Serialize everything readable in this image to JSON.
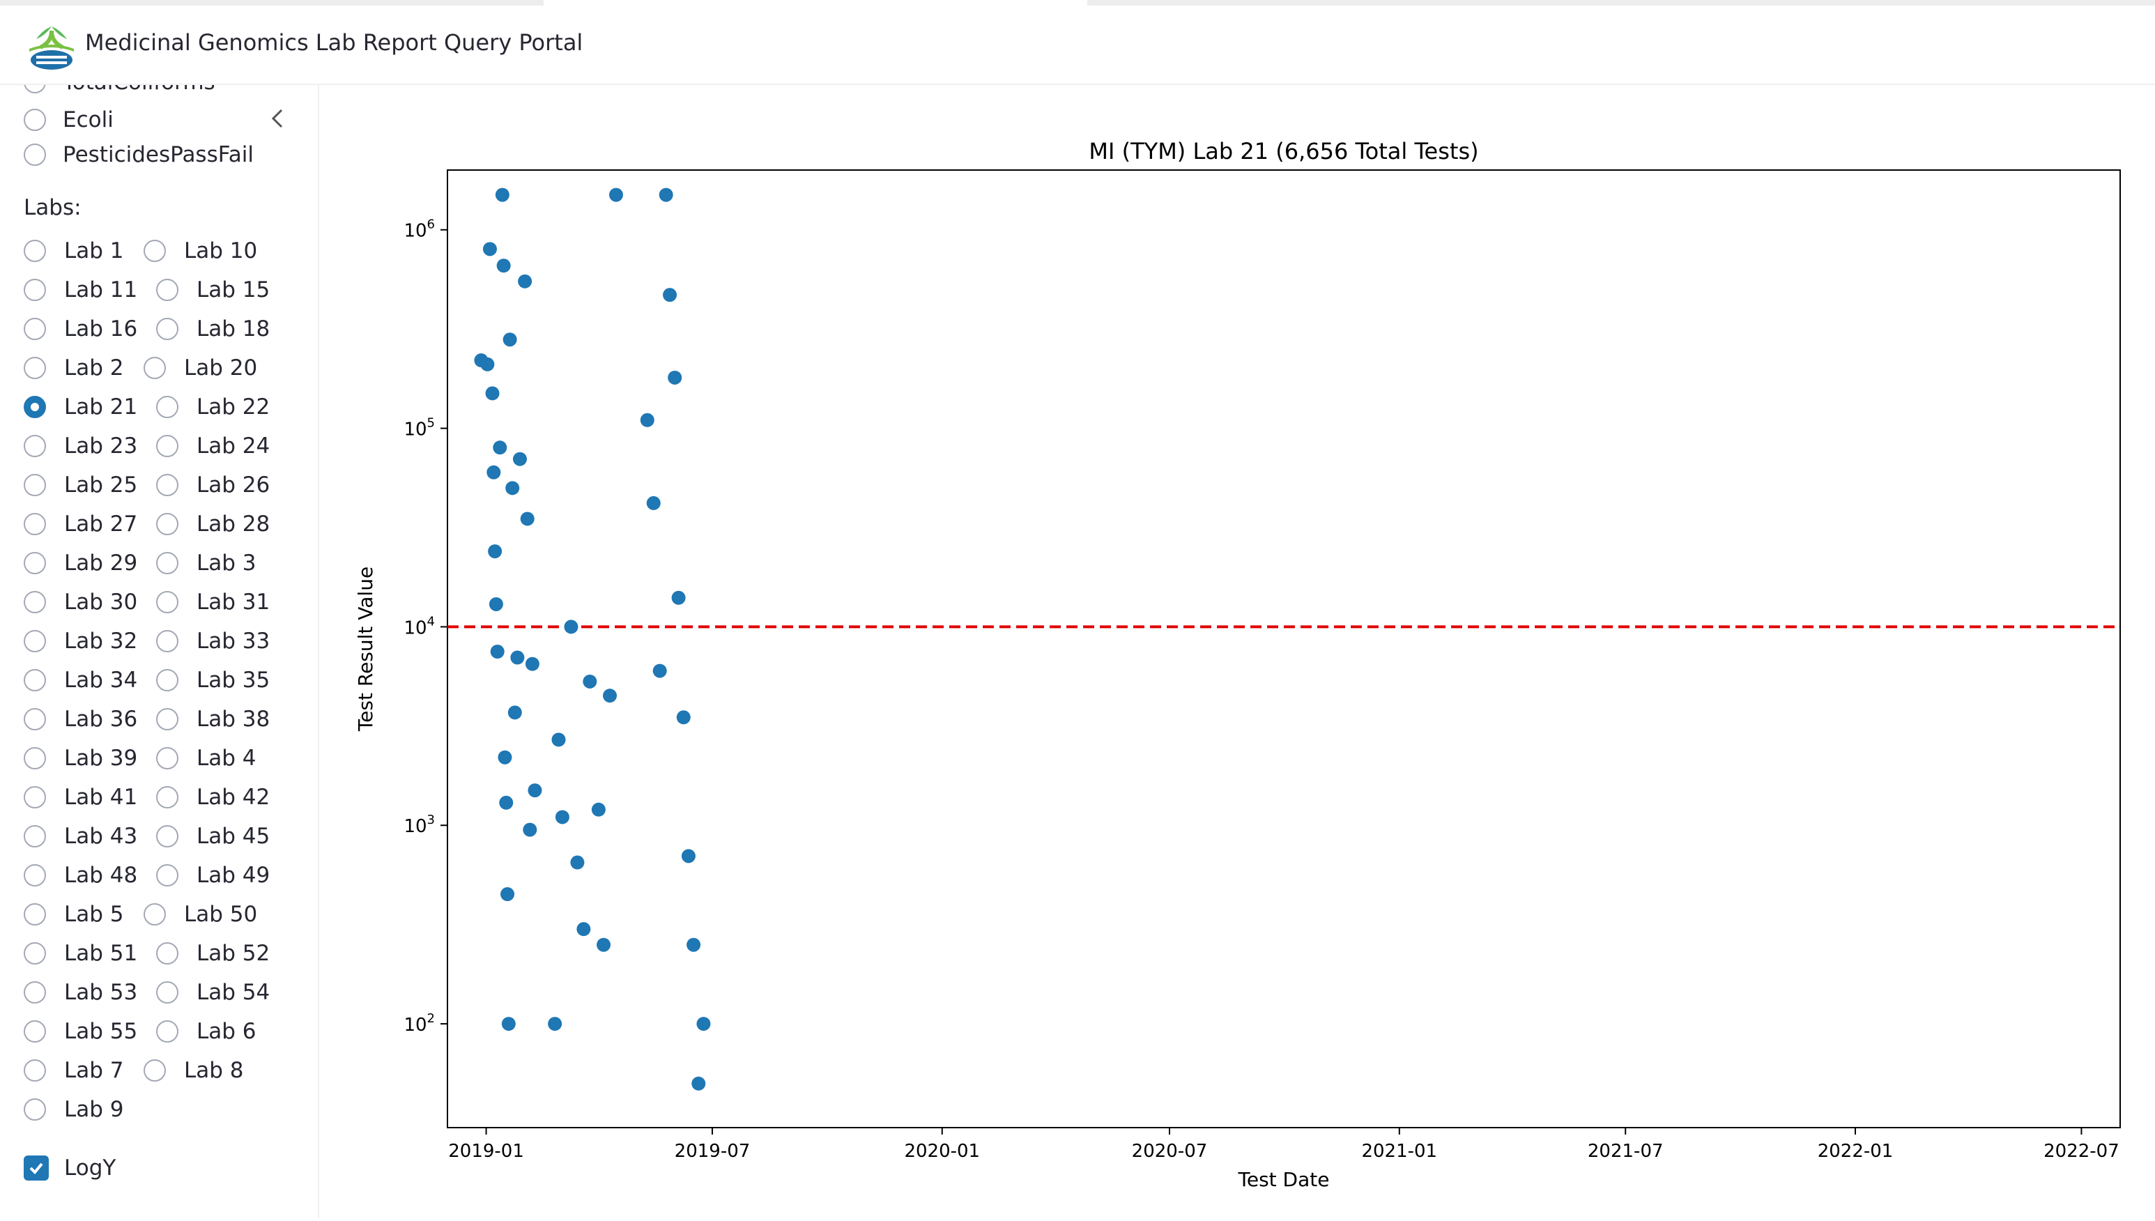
{
  "app": {
    "title": "Medicinal Genomics Lab Report Query Portal"
  },
  "sidebar": {
    "tests": [
      {
        "label": "TotalColiforms",
        "selected": false
      },
      {
        "label": "Ecoli",
        "selected": false
      },
      {
        "label": "PesticidesPassFail",
        "selected": false
      }
    ],
    "labs_label": "Labs:",
    "labs": [
      [
        "Lab 1",
        "Lab 10"
      ],
      [
        "Lab 11",
        "Lab 15"
      ],
      [
        "Lab 16",
        "Lab 18"
      ],
      [
        "Lab 2",
        "Lab 20"
      ],
      [
        "Lab 21",
        "Lab 22"
      ],
      [
        "Lab 23",
        "Lab 24"
      ],
      [
        "Lab 25",
        "Lab 26"
      ],
      [
        "Lab 27",
        "Lab 28"
      ],
      [
        "Lab 29",
        "Lab 3"
      ],
      [
        "Lab 30",
        "Lab 31"
      ],
      [
        "Lab 32",
        "Lab 33"
      ],
      [
        "Lab 34",
        "Lab 35"
      ],
      [
        "Lab 36",
        "Lab 38"
      ],
      [
        "Lab 39",
        "Lab 4"
      ],
      [
        "Lab 41",
        "Lab 42"
      ],
      [
        "Lab 43",
        "Lab 45"
      ],
      [
        "Lab 48",
        "Lab 49"
      ],
      [
        "Lab 5",
        "Lab 50"
      ],
      [
        "Lab 51",
        "Lab 52"
      ],
      [
        "Lab 53",
        "Lab 54"
      ],
      [
        "Lab 55",
        "Lab 6"
      ],
      [
        "Lab 7",
        "Lab 8"
      ],
      [
        "Lab 9"
      ]
    ],
    "selected_lab": "Lab 21",
    "logy": {
      "label": "LogY",
      "checked": true
    }
  },
  "colors": {
    "accent": "#1f77b4",
    "threshold": "#e00000"
  },
  "chart_data": {
    "type": "scatter",
    "title": "MI (TYM) Lab 21 (6,656 Total Tests)",
    "xlabel": "Test Date",
    "ylabel": "Test Result Value",
    "y_scale": "log",
    "xlim": [
      "2018-12-01",
      "2022-08-01"
    ],
    "ylim": [
      30,
      2000000
    ],
    "x_ticks": [
      "2019-01",
      "2019-07",
      "2020-01",
      "2020-07",
      "2021-01",
      "2021-07",
      "2022-01",
      "2022-07"
    ],
    "y_ticks": [
      {
        "value": 100,
        "exponent": "2"
      },
      {
        "value": 1000,
        "exponent": "3"
      },
      {
        "value": 10000,
        "exponent": "4"
      },
      {
        "value": 100000,
        "exponent": "5"
      },
      {
        "value": 1000000,
        "exponent": "6"
      }
    ],
    "tick_base": "10",
    "threshold": {
      "y": 10000,
      "style": "dashed",
      "color": "#e00000"
    },
    "series": [
      {
        "color": "#1f77b4",
        "points": [
          [
            "2018-12-28",
            220000
          ],
          [
            "2019-01-02",
            210000
          ],
          [
            "2019-01-04",
            800000
          ],
          [
            "2019-01-06",
            150000
          ],
          [
            "2019-01-07",
            60000
          ],
          [
            "2019-01-08",
            24000
          ],
          [
            "2019-01-09",
            13000
          ],
          [
            "2019-01-10",
            7500
          ],
          [
            "2019-01-12",
            80000
          ],
          [
            "2019-01-14",
            1500000
          ],
          [
            "2019-01-15",
            660000
          ],
          [
            "2019-01-16",
            2200
          ],
          [
            "2019-01-17",
            1300
          ],
          [
            "2019-01-18",
            450
          ],
          [
            "2019-01-19",
            100
          ],
          [
            "2019-01-20",
            280000
          ],
          [
            "2019-01-22",
            50000
          ],
          [
            "2019-01-24",
            3700
          ],
          [
            "2019-01-26",
            7000
          ],
          [
            "2019-01-28",
            70000
          ],
          [
            "2019-02-01",
            550000
          ],
          [
            "2019-02-03",
            35000
          ],
          [
            "2019-02-05",
            950
          ],
          [
            "2019-02-07",
            6500
          ],
          [
            "2019-02-09",
            1500
          ],
          [
            "2019-02-25",
            100
          ],
          [
            "2019-02-28",
            2700
          ],
          [
            "2019-03-03",
            1100
          ],
          [
            "2019-03-10",
            10000
          ],
          [
            "2019-03-15",
            650
          ],
          [
            "2019-03-20",
            300
          ],
          [
            "2019-03-25",
            5300
          ],
          [
            "2019-04-01",
            1200
          ],
          [
            "2019-04-05",
            250
          ],
          [
            "2019-04-10",
            4500
          ],
          [
            "2019-04-15",
            1500000
          ],
          [
            "2019-05-10",
            110000
          ],
          [
            "2019-05-15",
            42000
          ],
          [
            "2019-05-20",
            6000
          ],
          [
            "2019-05-25",
            1500000
          ],
          [
            "2019-05-28",
            470000
          ],
          [
            "2019-06-01",
            180000
          ],
          [
            "2019-06-04",
            14000
          ],
          [
            "2019-06-08",
            3500
          ],
          [
            "2019-06-12",
            700
          ],
          [
            "2019-06-16",
            250
          ],
          [
            "2019-06-20",
            50
          ],
          [
            "2019-06-24",
            100
          ]
        ]
      }
    ]
  }
}
